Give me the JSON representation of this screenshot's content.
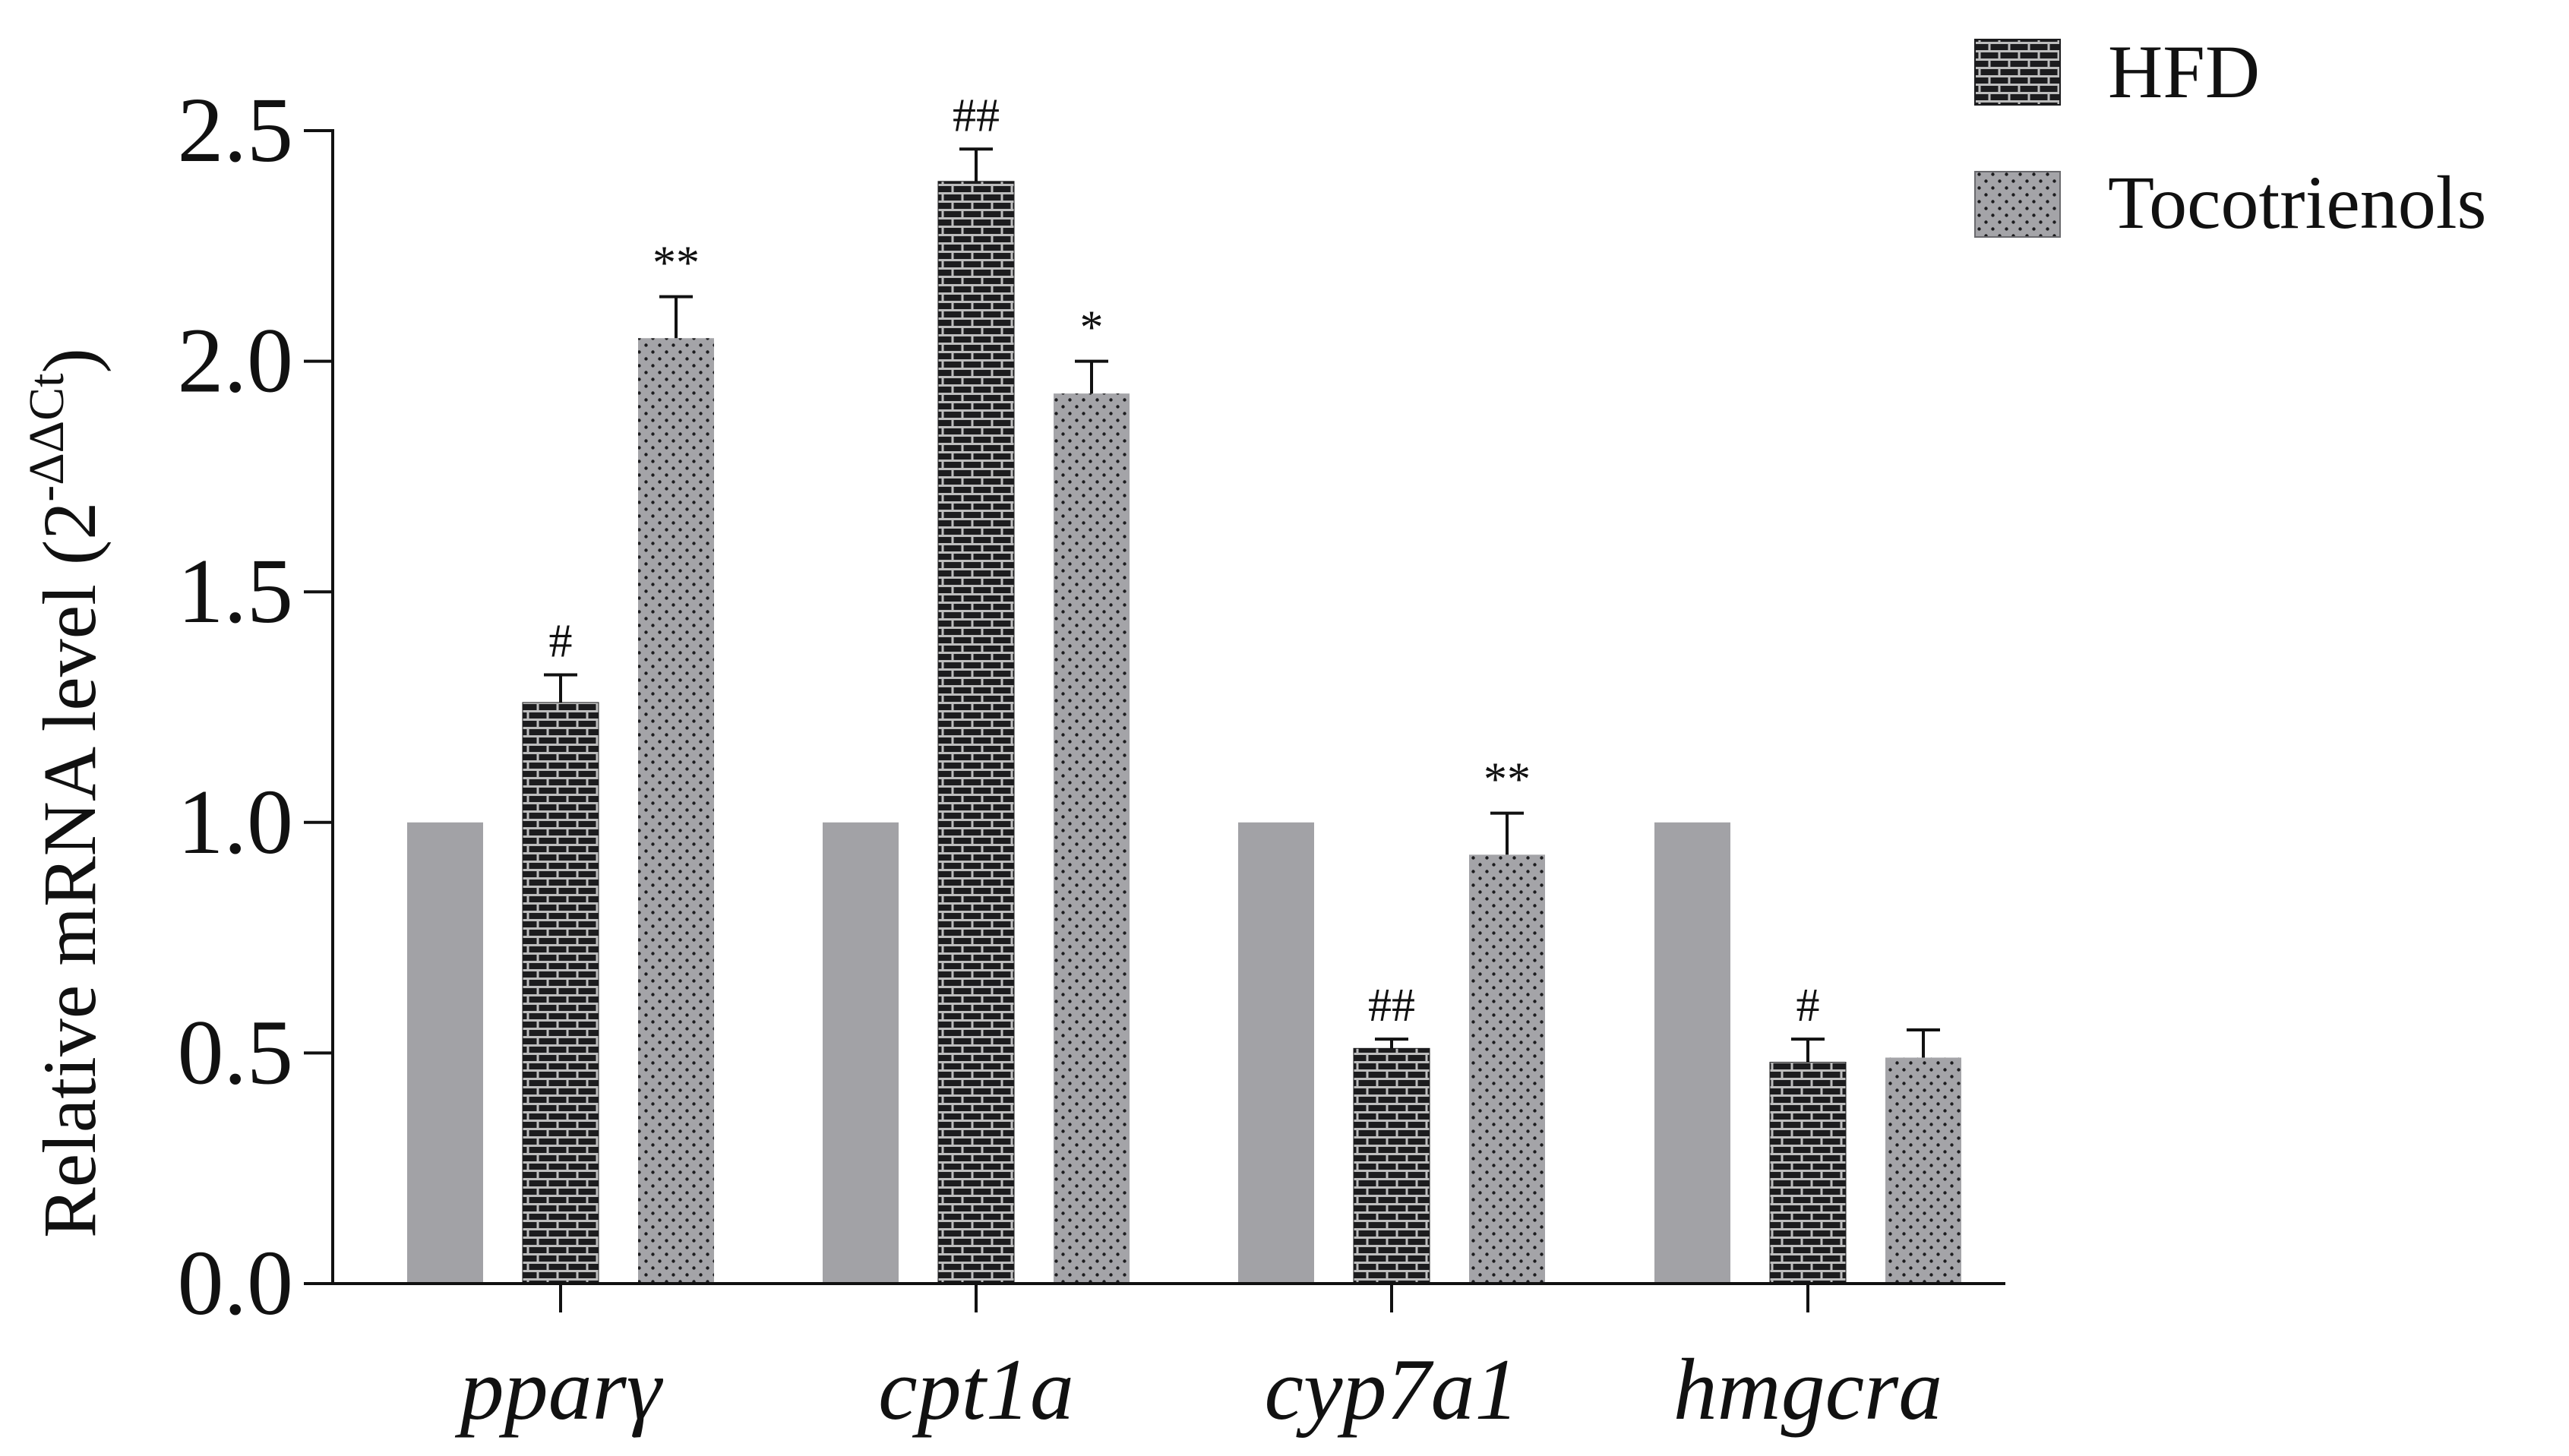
{
  "chart_data": {
    "type": "bar",
    "ylabel": "Relative mRNA level (2",
    "ylabel_superscript": "-ΔΔCt",
    "ylabel_close": ")",
    "ylim": [
      0,
      2.5
    ],
    "yticks": [
      0.0,
      0.5,
      1.0,
      1.5,
      2.0,
      2.5
    ],
    "ytick_labels": [
      "0.0",
      "0.5",
      "1.0",
      "1.5",
      "2.0",
      "2.5"
    ],
    "categories": [
      "pparγ",
      "cpt1a",
      "cyp7a1",
      "hmgcra"
    ],
    "series": [
      {
        "name": "",
        "pattern": "solid",
        "values": [
          1.0,
          1.0,
          1.0,
          1.0
        ],
        "errors": [
          0,
          0,
          0,
          0
        ],
        "annotations": [
          "",
          "",
          "",
          ""
        ]
      },
      {
        "name": "HFD",
        "pattern": "brick",
        "values": [
          1.26,
          2.39,
          0.51,
          0.48
        ],
        "errors": [
          0.06,
          0.07,
          0.02,
          0.05
        ],
        "annotations": [
          "#",
          "##",
          "##",
          "#"
        ]
      },
      {
        "name": "Tocotrienols",
        "pattern": "dots",
        "values": [
          2.05,
          1.93,
          0.93,
          0.49
        ],
        "errors": [
          0.09,
          0.07,
          0.09,
          0.06
        ],
        "annotations": [
          "**",
          "*",
          "**",
          ""
        ]
      }
    ],
    "legend_position": "top-right",
    "colors": {
      "solid": "#a2a2a6",
      "brick": "#1c1c1e",
      "dots": "#a4a4a8",
      "axis": "#111111"
    }
  }
}
